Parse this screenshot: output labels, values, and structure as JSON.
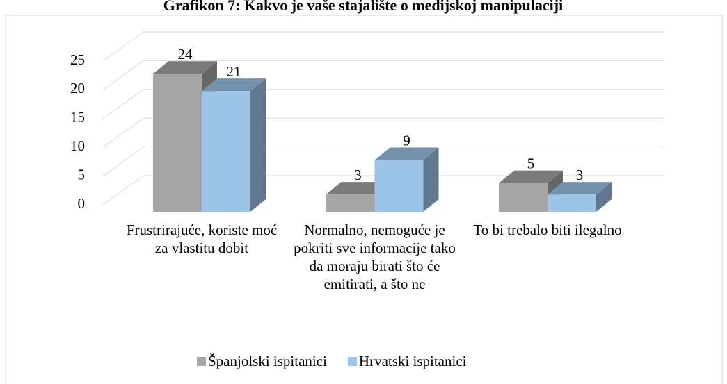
{
  "chart_data": {
    "type": "bar3d",
    "title": "Grafikon 7: Kakvo je vaše stajalište o medijskoj manipulaciji",
    "categories": [
      "Frustrirajuće, koriste moć za vlastitu dobit",
      "Normalno, nemoguće je pokriti sve informacije tako da moraju birati što će emitirati, a što ne",
      "To bi trebalo biti ilegalno"
    ],
    "series": [
      {
        "name": "Španjolski ispitanici",
        "color": "#a5a5a5",
        "values": [
          24,
          3,
          5
        ]
      },
      {
        "name": "Hrvatski ispitanici",
        "color": "#9dc3e6",
        "values": [
          21,
          9,
          3
        ]
      }
    ],
    "ylim": [
      0,
      25
    ],
    "yticks": [
      0,
      5,
      10,
      15,
      20,
      25
    ],
    "grid": true,
    "legend": "bottom"
  }
}
